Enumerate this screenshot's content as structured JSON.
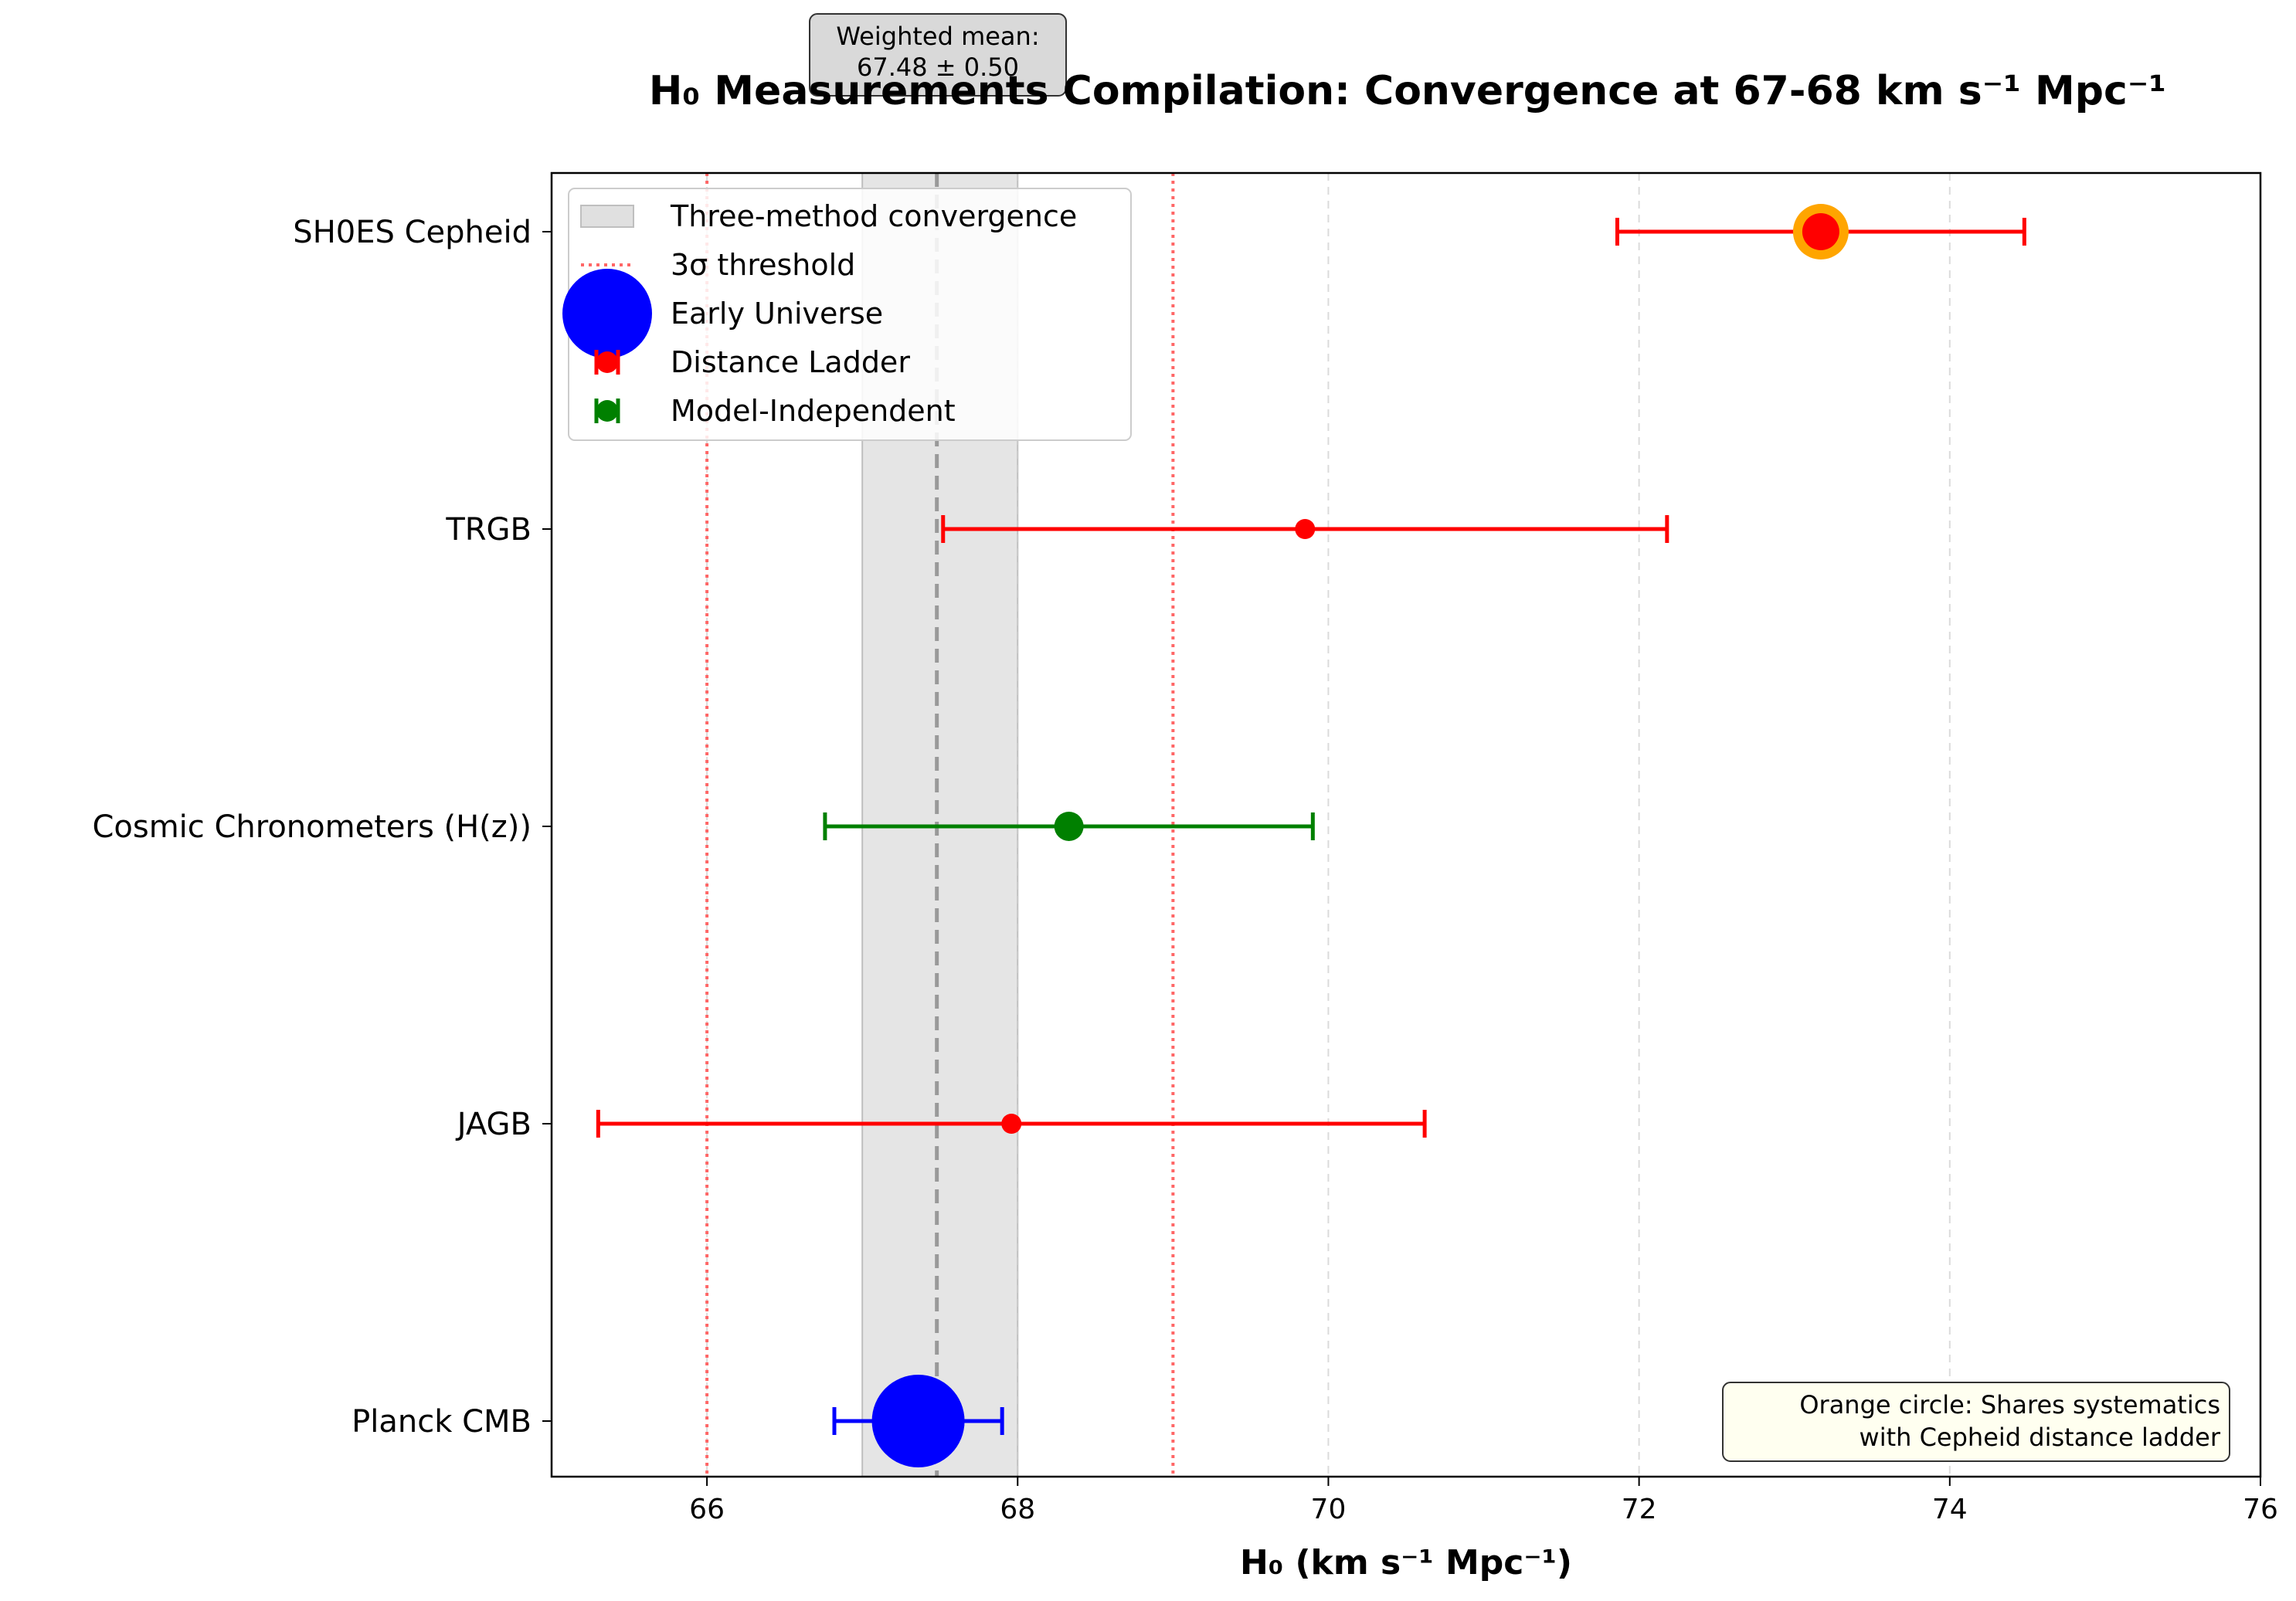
{
  "chart_data": {
    "type": "errorbar",
    "title": "H₀ Measurements Compilation: Convergence at 67-68 km s⁻¹ Mpc⁻¹",
    "xlabel": "H₀ (km s⁻¹ Mpc⁻¹)",
    "ylabel": "",
    "xlim": [
      65,
      76
    ],
    "xticks": [
      66,
      68,
      70,
      72,
      74,
      76
    ],
    "xtick_labels": [
      "66",
      "68",
      "70",
      "72",
      "74",
      "76"
    ],
    "grid": "vertical dashed",
    "categories": [
      "SH0ES Cepheid",
      "TRGB",
      "Cosmic Chronometers (H(z))",
      "JAGB",
      "Planck CMB"
    ],
    "measurements": [
      {
        "label": "SH0ES Cepheid",
        "value": 73.17,
        "err_low": 1.31,
        "err_high": 1.31,
        "group": "Distance Ladder",
        "color": "#ff0000",
        "marker": "large",
        "highlight": "orange"
      },
      {
        "label": "TRGB",
        "value": 69.85,
        "err_low": 2.33,
        "err_high": 2.33,
        "group": "Distance Ladder",
        "color": "#ff0000",
        "marker": "small"
      },
      {
        "label": "Cosmic Chronometers (H(z))",
        "value": 68.33,
        "err_low": 1.57,
        "err_high": 1.57,
        "group": "Model-Independent",
        "color": "#008000",
        "marker": "medium"
      },
      {
        "label": "JAGB",
        "value": 67.96,
        "err_low": 2.66,
        "err_high": 2.66,
        "group": "Distance Ladder",
        "color": "#ff0000",
        "marker": "small"
      },
      {
        "label": "Planck CMB",
        "value": 67.36,
        "err_low": 0.54,
        "err_high": 0.54,
        "group": "Early Universe",
        "color": "#0000ff",
        "marker": "xlarge"
      }
    ],
    "convergence_band": [
      67.0,
      68.0
    ],
    "weighted_mean": 67.48,
    "threshold_lines": [
      66.0,
      69.0
    ],
    "legend": {
      "position": "upper left",
      "entries": [
        {
          "label": "Three-method convergence",
          "style": "band",
          "color": "#d3d3d3"
        },
        {
          "label": "3σ threshold",
          "style": "dotted-line",
          "color": "#ff6666"
        },
        {
          "label": "Early Universe",
          "style": "big-marker",
          "color": "#0000ff"
        },
        {
          "label": "Distance Ladder",
          "style": "errorbar",
          "color": "#ff0000"
        },
        {
          "label": "Model-Independent",
          "style": "errorbar",
          "color": "#008000"
        }
      ]
    },
    "annotations": {
      "weighted_mean_box": [
        "Weighted mean:",
        "67.48 ± 0.50"
      ],
      "note_box": [
        "Orange circle: Shares systematics",
        "with Cepheid distance ladder"
      ]
    }
  }
}
